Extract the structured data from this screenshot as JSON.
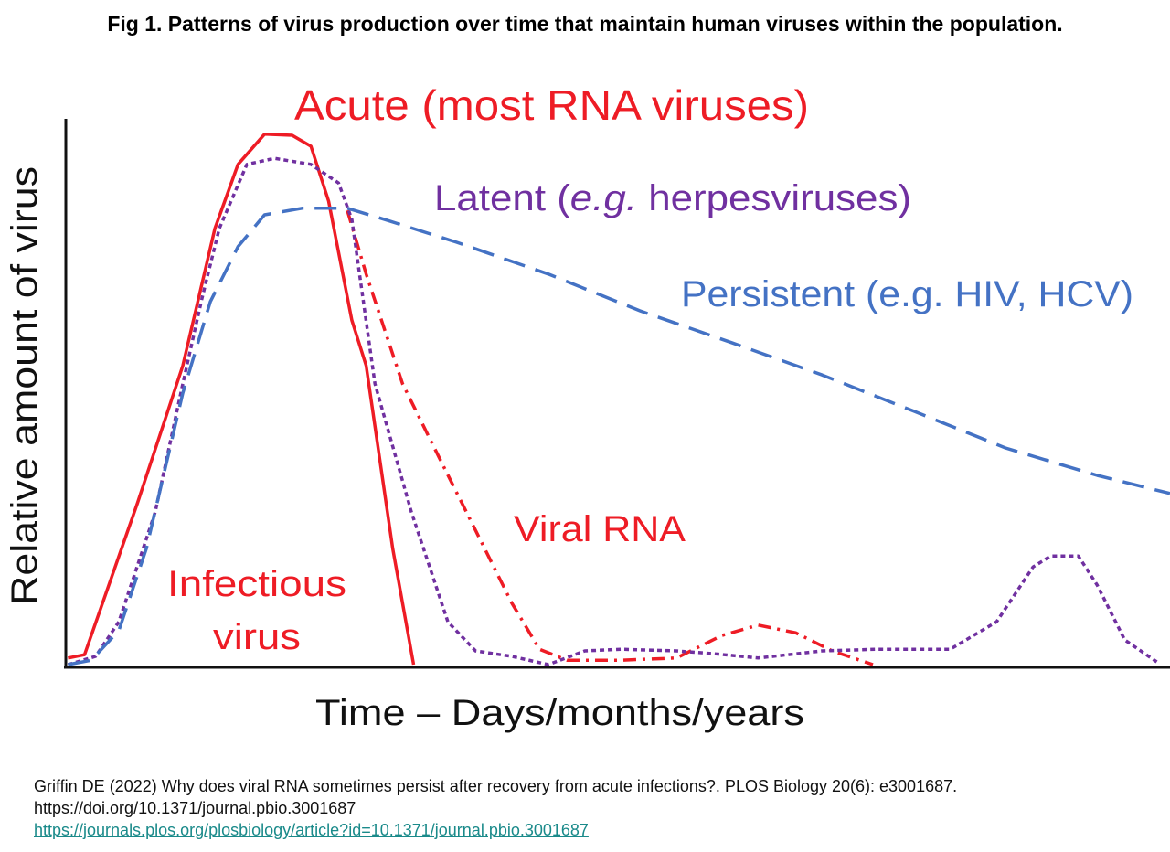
{
  "title": "Fig 1. Patterns of virus production over time that maintain human viruses within the population.",
  "chart_data": {
    "type": "line",
    "title": "Acute (most RNA viruses)",
    "xlabel": "Time – Days/months/years",
    "ylabel": "Relative amount of virus",
    "xlim": [
      0,
      100
    ],
    "ylim": [
      0,
      100
    ],
    "grid": false,
    "annotations": {
      "acute": "Acute (most RNA viruses)",
      "latent_prefix": "Latent (",
      "latent_eg": "e.g.",
      "latent_suffix": " herpesviruses)",
      "persistent": "Persistent (e.g. HIV, HCV)",
      "viral_rna": "Viral RNA",
      "infectious_1": "Infectious",
      "infectious_2": "virus"
    },
    "series": [
      {
        "name": "Infectious virus",
        "color": "#ee1c25",
        "style": "solid",
        "points": [
          [
            0.2,
            1.2
          ],
          [
            1.7,
            1.8
          ],
          [
            6.5,
            29.5
          ],
          [
            10.6,
            54.5
          ],
          [
            13.5,
            79.5
          ],
          [
            15.6,
            91.2
          ],
          [
            18,
            96.7
          ],
          [
            20.5,
            96.5
          ],
          [
            22.2,
            94.5
          ],
          [
            23.8,
            84.5
          ],
          [
            25.9,
            62.8
          ],
          [
            27.2,
            54.5
          ],
          [
            29.6,
            21.2
          ],
          [
            31.5,
            0
          ]
        ]
      },
      {
        "name": "Viral RNA",
        "color": "#ee1c25",
        "style": "dashdot",
        "points": [
          [
            25.5,
            82.8
          ],
          [
            27.2,
            71.2
          ],
          [
            30.5,
            51.2
          ],
          [
            33.8,
            37.8
          ],
          [
            37.1,
            24.5
          ],
          [
            40.4,
            11.2
          ],
          [
            42.9,
            2.8
          ],
          [
            45.4,
            0.8
          ],
          [
            50.3,
            0.8
          ],
          [
            55.3,
            1.2
          ],
          [
            59.4,
            5.3
          ],
          [
            62.7,
            7.2
          ],
          [
            66.1,
            5.8
          ],
          [
            69.4,
            2.5
          ],
          [
            73.1,
            0
          ]
        ]
      },
      {
        "name": "Latent",
        "color": "#7030a0",
        "style": "dotted",
        "points": [
          [
            0.2,
            0
          ],
          [
            2.7,
            1.5
          ],
          [
            4.8,
            7.8
          ],
          [
            8.1,
            27.8
          ],
          [
            10.6,
            51.2
          ],
          [
            12.3,
            66.5
          ],
          [
            13.9,
            79.5
          ],
          [
            16.4,
            91.2
          ],
          [
            18.9,
            92.3
          ],
          [
            22.2,
            91.2
          ],
          [
            24.7,
            87.8
          ],
          [
            25.9,
            81.2
          ],
          [
            28,
            51.2
          ],
          [
            31.3,
            27.8
          ],
          [
            34.6,
            7.8
          ],
          [
            37.1,
            2.5
          ],
          [
            40.4,
            1.5
          ],
          [
            43.7,
            0
          ],
          [
            47,
            2.5
          ],
          [
            50.3,
            2.8
          ],
          [
            55.3,
            2.5
          ],
          [
            58.6,
            2
          ],
          [
            62.7,
            1.2
          ],
          [
            68.5,
            2.5
          ],
          [
            73.5,
            2.8
          ],
          [
            80.1,
            2.8
          ],
          [
            84.3,
            7.8
          ],
          [
            87.6,
            17.8
          ],
          [
            89.2,
            19.8
          ],
          [
            91.7,
            19.8
          ],
          [
            93.4,
            14.5
          ],
          [
            95.9,
            4.5
          ],
          [
            98.8,
            0.5
          ]
        ]
      },
      {
        "name": "Persistent",
        "color": "#4472c4",
        "style": "dashed",
        "points": [
          [
            0.2,
            0
          ],
          [
            2.3,
            0.8
          ],
          [
            4.8,
            6.2
          ],
          [
            7.3,
            21.2
          ],
          [
            10.6,
            49.5
          ],
          [
            13.1,
            66.2
          ],
          [
            15.6,
            76.2
          ],
          [
            18,
            82
          ],
          [
            21.4,
            83.2
          ],
          [
            25.5,
            83.2
          ],
          [
            28.8,
            81.2
          ],
          [
            35.4,
            77
          ],
          [
            43.7,
            71.2
          ],
          [
            52,
            64.5
          ],
          [
            60.3,
            58.7
          ],
          [
            68.5,
            52.8
          ],
          [
            76.8,
            46.2
          ],
          [
            85.1,
            39.5
          ],
          [
            93.4,
            34.5
          ],
          [
            100,
            31.2
          ]
        ]
      }
    ]
  },
  "citation": {
    "line1": "Griffin DE (2022) Why does viral RNA sometimes persist after recovery from acute infections?. PLOS Biology 20(6): e3001687.",
    "line2": "https://doi.org/10.1371/journal.pbio.3001687",
    "link": "https://journals.plos.org/plosbiology/article?id=10.1371/journal.pbio.3001687"
  }
}
